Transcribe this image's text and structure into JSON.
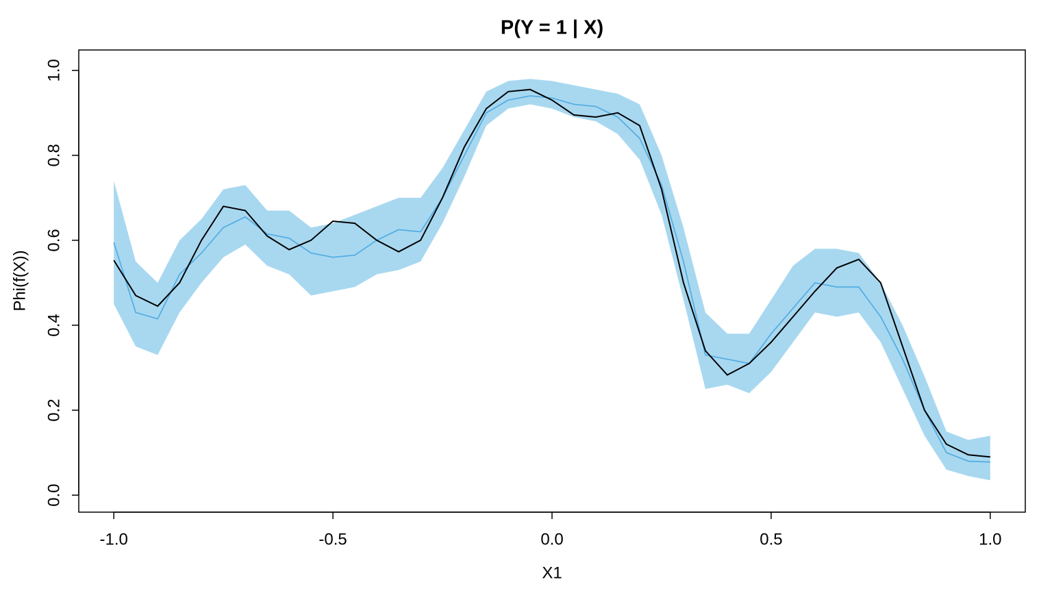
{
  "chart_data": {
    "type": "line",
    "title": "P(Y = 1 | X)",
    "xlabel": "X1",
    "ylabel": "Phi(f(X))",
    "x": [
      -1.0,
      -0.95,
      -0.9,
      -0.85,
      -0.8,
      -0.75,
      -0.7,
      -0.65,
      -0.6,
      -0.55,
      -0.5,
      -0.45,
      -0.4,
      -0.35,
      -0.3,
      -0.25,
      -0.2,
      -0.15,
      -0.1,
      -0.05,
      0.0,
      0.05,
      0.1,
      0.15,
      0.2,
      0.25,
      0.3,
      0.35,
      0.4,
      0.45,
      0.5,
      0.55,
      0.6,
      0.65,
      0.7,
      0.75,
      0.8,
      0.85,
      0.9,
      0.95,
      1.0
    ],
    "band": {
      "color": "#a8d8f0",
      "lower": [
        0.45,
        0.35,
        0.33,
        0.43,
        0.5,
        0.56,
        0.59,
        0.54,
        0.52,
        0.47,
        0.48,
        0.49,
        0.52,
        0.53,
        0.55,
        0.64,
        0.75,
        0.87,
        0.91,
        0.92,
        0.91,
        0.89,
        0.88,
        0.85,
        0.79,
        0.66,
        0.46,
        0.25,
        0.26,
        0.24,
        0.29,
        0.36,
        0.43,
        0.42,
        0.43,
        0.36,
        0.25,
        0.14,
        0.06,
        0.045,
        0.035
      ],
      "upper": [
        0.74,
        0.55,
        0.5,
        0.6,
        0.65,
        0.72,
        0.73,
        0.67,
        0.67,
        0.63,
        0.64,
        0.66,
        0.68,
        0.7,
        0.7,
        0.77,
        0.86,
        0.95,
        0.975,
        0.98,
        0.975,
        0.965,
        0.955,
        0.945,
        0.92,
        0.8,
        0.63,
        0.43,
        0.38,
        0.38,
        0.46,
        0.54,
        0.58,
        0.58,
        0.57,
        0.5,
        0.4,
        0.28,
        0.15,
        0.13,
        0.14
      ]
    },
    "series": [
      {
        "color": "#56aee2",
        "values": [
          0.595,
          0.43,
          0.415,
          0.52,
          0.57,
          0.63,
          0.655,
          0.615,
          0.605,
          0.57,
          0.56,
          0.565,
          0.6,
          0.625,
          0.62,
          0.7,
          0.8,
          0.9,
          0.93,
          0.94,
          0.935,
          0.92,
          0.915,
          0.89,
          0.84,
          0.73,
          0.55,
          0.33,
          0.32,
          0.31,
          0.38,
          0.44,
          0.5,
          0.49,
          0.49,
          0.42,
          0.32,
          0.2,
          0.1,
          0.08,
          0.078
        ]
      },
      {
        "color": "#000000",
        "values": [
          0.553,
          0.47,
          0.445,
          0.5,
          0.6,
          0.68,
          0.67,
          0.61,
          0.578,
          0.6,
          0.645,
          0.64,
          0.6,
          0.573,
          0.6,
          0.7,
          0.82,
          0.91,
          0.95,
          0.955,
          0.93,
          0.895,
          0.89,
          0.9,
          0.87,
          0.72,
          0.5,
          0.34,
          0.283,
          0.31,
          0.36,
          0.42,
          0.48,
          0.535,
          0.555,
          0.5,
          0.35,
          0.2,
          0.12,
          0.095,
          0.09
        ]
      }
    ],
    "xlim": [
      -1.08,
      1.08
    ],
    "ylim": [
      -0.04,
      1.048
    ],
    "xticks": [
      {
        "value": -1,
        "label": "-1.0"
      },
      -0.5,
      {
        "value": 0,
        "label": "0.0"
      },
      0.5,
      {
        "value": 1,
        "label": "1.0"
      }
    ],
    "yticks": [
      {
        "value": 0,
        "label": "0.0"
      },
      0.2,
      0.4,
      0.6,
      0.8,
      {
        "value": 1,
        "label": "1.0"
      }
    ]
  }
}
